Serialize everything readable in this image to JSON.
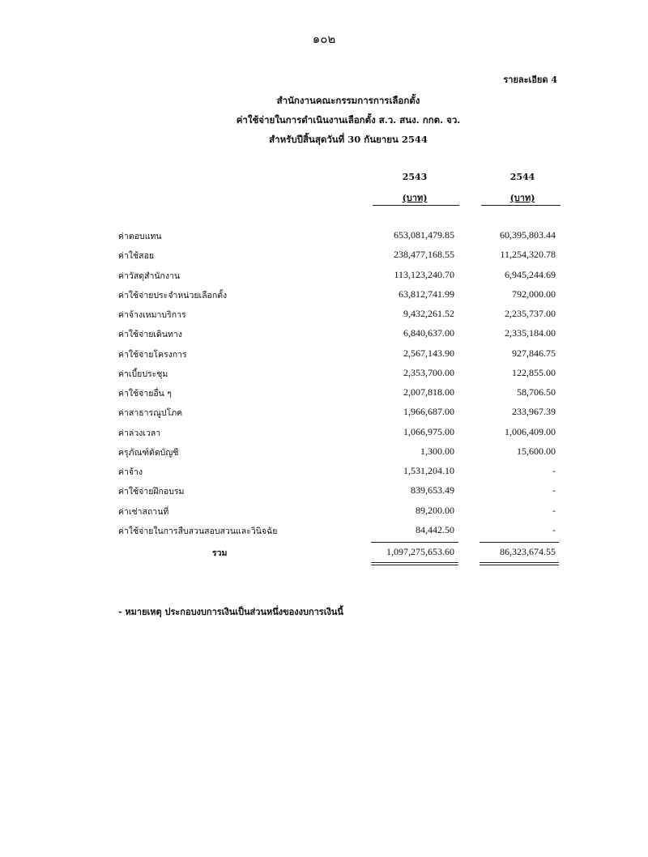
{
  "page_number": "๑๐๒",
  "detail_ref": "รายละเอียด 4",
  "titles": [
    "สำนักงานคณะกรรมการการเลือกตั้ง",
    "ค่าใช้จ่ายในการดำเนินงานเลือกตั้ง ส.ว. สนง. กกต. จว.",
    "สำหรับปีสิ้นสุดวันที่ 30 กันยายน 2544"
  ],
  "columns": [
    {
      "year": "2543",
      "unit": "(บาท)"
    },
    {
      "year": "2544",
      "unit": "(บาท)"
    }
  ],
  "rows": [
    {
      "label": "ค่าตอบแทน",
      "v2543": "653,081,479.85",
      "v2544": "60,395,803.44"
    },
    {
      "label": "ค่าใช้สอย",
      "v2543": "238,477,168.55",
      "v2544": "11,254,320.78"
    },
    {
      "label": "ค่าวัสดุสำนักงาน",
      "v2543": "113,123,240.70",
      "v2544": "6,945,244.69"
    },
    {
      "label": "ค่าใช้จ่ายประจำหน่วยเลือกตั้ง",
      "v2543": "63,812,741.99",
      "v2544": "792,000.00"
    },
    {
      "label": "ค่าจ้างเหมาบริการ",
      "v2543": "9,432,261.52",
      "v2544": "2,235,737.00"
    },
    {
      "label": "ค่าใช้จ่ายเดินทาง",
      "v2543": "6,840,637.00",
      "v2544": "2,335,184.00"
    },
    {
      "label": "ค่าใช้จ่ายโครงการ",
      "v2543": "2,567,143.90",
      "v2544": "927,846.75"
    },
    {
      "label": "ค่าเบี้ยประชุม",
      "v2543": "2,353,700.00",
      "v2544": "122,855.00"
    },
    {
      "label": "ค่าใช้จ่ายอื่น ๆ",
      "v2543": "2,007,818.00",
      "v2544": "58,706.50"
    },
    {
      "label": "ค่าสาธารณูปโภค",
      "v2543": "1,966,687.00",
      "v2544": "233,967.39"
    },
    {
      "label": "ค่าล่วงเวลา",
      "v2543": "1,066,975.00",
      "v2544": "1,006,409.00"
    },
    {
      "label": "ครุภัณฑ์ตัดบัญชี",
      "v2543": "1,300.00",
      "v2544": "15,600.00"
    },
    {
      "label": "ค่าจ้าง",
      "v2543": "1,531,204.10",
      "v2544": "-"
    },
    {
      "label": "ค่าใช้จ่ายฝึกอบรม",
      "v2543": "839,653.49",
      "v2544": "-"
    },
    {
      "label": "ค่าเช่าสถานที่",
      "v2543": "89,200.00",
      "v2544": "-"
    },
    {
      "label": "ค่าใช้จ่ายในการสืบสวนสอบสวนและวินิจฉัย",
      "v2543": "84,442.50",
      "v2544": "-"
    }
  ],
  "total": {
    "label": "รวม",
    "v2543": "1,097,275,653.60",
    "v2544": "86,323,674.55"
  },
  "note": "- หมายเหตุ  ประกอบงบการเงินเป็นส่วนหนึ่งของงบการเงินนี้"
}
